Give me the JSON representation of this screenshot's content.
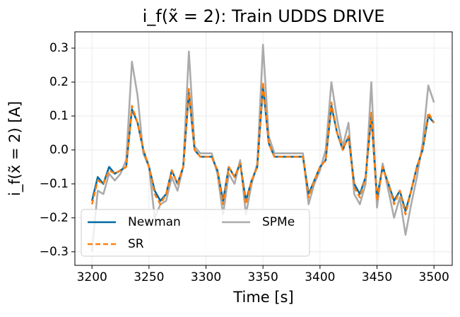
{
  "chart_data": {
    "type": "line",
    "title": "i_f(x̃ = 2): Train UDDS DRIVE",
    "x_label": "Time [s]",
    "y_label": "i_f(x̃ = 2) [A]",
    "x": [
      3200,
      3205,
      3210,
      3215,
      3220,
      3225,
      3230,
      3235,
      3240,
      3245,
      3250,
      3255,
      3260,
      3265,
      3270,
      3275,
      3280,
      3285,
      3290,
      3295,
      3300,
      3305,
      3310,
      3315,
      3320,
      3325,
      3330,
      3335,
      3340,
      3345,
      3350,
      3355,
      3360,
      3365,
      3370,
      3375,
      3380,
      3385,
      3390,
      3395,
      3400,
      3405,
      3410,
      3415,
      3420,
      3425,
      3430,
      3435,
      3440,
      3445,
      3450,
      3455,
      3460,
      3465,
      3470,
      3475,
      3480,
      3485,
      3490,
      3495,
      3500
    ],
    "series": [
      {
        "name": "Newman",
        "color": "#006ba4",
        "dash": false,
        "values": [
          -0.15,
          -0.08,
          -0.1,
          -0.05,
          -0.07,
          -0.06,
          -0.05,
          0.12,
          0.08,
          0.0,
          -0.05,
          -0.12,
          -0.15,
          -0.13,
          -0.06,
          -0.1,
          -0.05,
          0.17,
          0.0,
          -0.02,
          -0.02,
          -0.02,
          -0.06,
          -0.15,
          -0.05,
          -0.08,
          -0.04,
          -0.15,
          -0.09,
          -0.05,
          0.19,
          0.02,
          -0.02,
          -0.02,
          -0.02,
          -0.02,
          -0.02,
          -0.02,
          -0.13,
          -0.09,
          -0.05,
          -0.03,
          0.13,
          0.05,
          0.0,
          0.04,
          -0.1,
          -0.13,
          -0.08,
          0.1,
          -0.14,
          -0.05,
          -0.1,
          -0.15,
          -0.12,
          -0.18,
          -0.12,
          -0.05,
          0.0,
          0.1,
          0.08
        ]
      },
      {
        "name": "SR",
        "color": "#ff800e",
        "dash": true,
        "values": [
          -0.16,
          -0.09,
          -0.1,
          -0.06,
          -0.07,
          -0.06,
          -0.05,
          0.13,
          0.08,
          0.0,
          -0.05,
          -0.13,
          -0.16,
          -0.13,
          -0.06,
          -0.1,
          -0.05,
          0.18,
          0.0,
          -0.02,
          -0.02,
          -0.02,
          -0.06,
          -0.16,
          -0.05,
          -0.08,
          -0.04,
          -0.16,
          -0.09,
          -0.05,
          0.2,
          0.02,
          -0.02,
          -0.02,
          -0.02,
          -0.02,
          -0.02,
          -0.02,
          -0.14,
          -0.09,
          -0.05,
          -0.03,
          0.14,
          0.05,
          0.0,
          0.04,
          -0.11,
          -0.14,
          -0.08,
          0.11,
          -0.15,
          -0.05,
          -0.1,
          -0.16,
          -0.12,
          -0.19,
          -0.12,
          -0.05,
          0.0,
          0.11,
          0.08
        ]
      },
      {
        "name": "SPMe",
        "color": "#ababab",
        "dash": false,
        "values": [
          -0.3,
          -0.12,
          -0.13,
          -0.07,
          -0.09,
          -0.07,
          -0.03,
          0.26,
          0.16,
          -0.01,
          -0.05,
          -0.2,
          -0.16,
          -0.15,
          -0.08,
          -0.12,
          -0.05,
          0.29,
          0.01,
          -0.01,
          -0.01,
          -0.01,
          -0.07,
          -0.19,
          -0.07,
          -0.1,
          -0.03,
          -0.19,
          -0.1,
          -0.04,
          0.31,
          0.04,
          -0.01,
          -0.01,
          -0.01,
          -0.01,
          -0.01,
          -0.01,
          -0.16,
          -0.1,
          -0.06,
          0.0,
          0.2,
          0.09,
          0.01,
          0.08,
          -0.13,
          -0.16,
          -0.1,
          0.2,
          -0.17,
          -0.04,
          -0.12,
          -0.2,
          -0.14,
          -0.25,
          -0.16,
          -0.08,
          0.02,
          0.19,
          0.14
        ]
      }
    ],
    "xlim": [
      3185,
      3516
    ],
    "ylim": [
      -0.34,
      0.348
    ],
    "xticks": [
      3200,
      3250,
      3300,
      3350,
      3400,
      3450,
      3500
    ],
    "yticks": [
      {
        "value": -0.3,
        "label": "−0.3"
      },
      {
        "value": -0.2,
        "label": "−0.2"
      },
      {
        "value": -0.1,
        "label": "−0.1"
      },
      {
        "value": 0.0,
        "label": "0.0"
      },
      0.1,
      0.2,
      0.3
    ],
    "grid": true,
    "legend": "lower left"
  }
}
